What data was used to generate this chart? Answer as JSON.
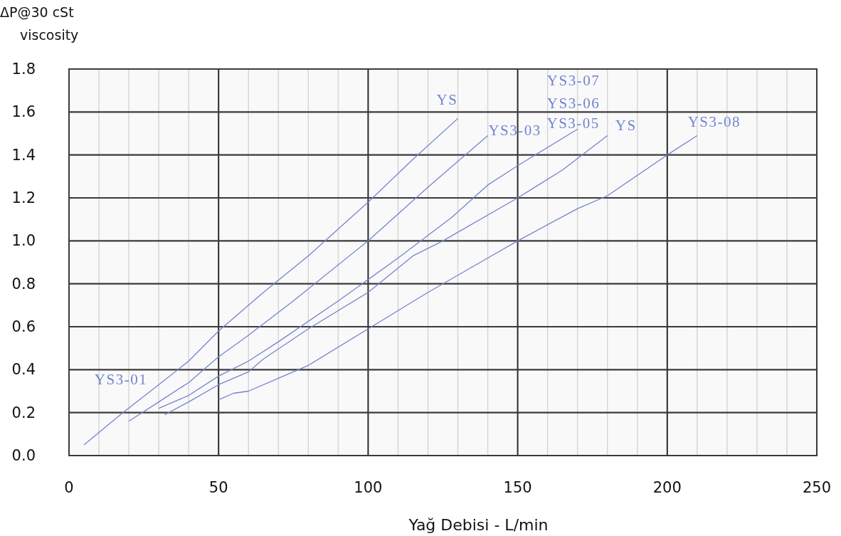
{
  "chart_data": {
    "type": "line",
    "xlabel": "Yağ Debisi - L/min",
    "ylabel": "ΔP@30 cSt\nviscosity",
    "xlim": [
      0,
      250
    ],
    "ylim": [
      0,
      1.8
    ],
    "xticks": [
      0,
      {
        "value": 10,
        "label": null
      },
      {
        "value": 20,
        "label": null
      },
      {
        "value": 30,
        "label": null
      },
      {
        "value": 40,
        "label": null
      },
      50,
      {
        "value": 60,
        "label": null
      },
      {
        "value": 70,
        "label": null
      },
      {
        "value": 80,
        "label": null
      },
      {
        "value": 90,
        "label": null
      },
      100,
      {
        "value": 110,
        "label": null
      },
      {
        "value": 120,
        "label": null
      },
      {
        "value": 130,
        "label": null
      },
      {
        "value": 140,
        "label": null
      },
      150,
      {
        "value": 160,
        "label": null
      },
      {
        "value": 170,
        "label": null
      },
      {
        "value": 180,
        "label": null
      },
      {
        "value": 190,
        "label": null
      },
      200,
      {
        "value": 210,
        "label": null
      },
      {
        "value": 220,
        "label": null
      },
      {
        "value": 230,
        "label": null
      },
      {
        "value": 240,
        "label": null
      },
      250
    ],
    "yticks": [
      {
        "value": 0,
        "label": "0.0"
      },
      0.2,
      0.4,
      0.6,
      0.8,
      {
        "value": 1,
        "label": "1.0"
      },
      1.2,
      1.4,
      1.6,
      1.8
    ],
    "grid": true,
    "marker": "none",
    "line_style": "solid",
    "series": [
      {
        "name": "YS",
        "color": "#7384d0",
        "x": [
          5,
          18,
          30,
          40,
          50,
          65,
          80,
          100,
          115,
          130
        ],
        "values": [
          0.05,
          0.2,
          0.33,
          0.44,
          0.58,
          0.76,
          0.93,
          1.18,
          1.38,
          1.57
        ]
      },
      {
        "name": "YS3-03",
        "color": "#7384d0",
        "x": [
          20,
          30,
          40,
          50,
          60,
          75,
          100,
          120,
          140
        ],
        "values": [
          0.16,
          0.25,
          0.34,
          0.46,
          0.56,
          0.72,
          1.0,
          1.25,
          1.49
        ]
      },
      {
        "name": "YS3-05",
        "color": "#7384d0",
        "x": [
          30,
          40,
          50,
          60,
          70,
          90,
          100,
          110,
          128,
          140,
          150,
          170
        ],
        "values": [
          0.22,
          0.28,
          0.37,
          0.44,
          0.53,
          0.72,
          0.82,
          0.92,
          1.11,
          1.26,
          1.35,
          1.52
        ]
      },
      {
        "name": "YS",
        "color": "#7384d0",
        "x": [
          32,
          40,
          50,
          60,
          65,
          80,
          100,
          115,
          125,
          150,
          165,
          180
        ],
        "values": [
          0.19,
          0.25,
          0.33,
          0.39,
          0.45,
          0.59,
          0.76,
          0.93,
          1.0,
          1.2,
          1.33,
          1.49
        ]
      },
      {
        "name": "YS3-08",
        "color": "#7384d0",
        "x": [
          50,
          55,
          60,
          70,
          80,
          100,
          120,
          140,
          150,
          170,
          180,
          200,
          210
        ],
        "values": [
          0.26,
          0.29,
          0.3,
          0.36,
          0.42,
          0.59,
          0.76,
          0.92,
          1.0,
          1.15,
          1.21,
          1.4,
          1.49
        ]
      }
    ],
    "annotations": [
      "YS3-01",
      "YS3-07",
      "YS3-06"
    ]
  }
}
